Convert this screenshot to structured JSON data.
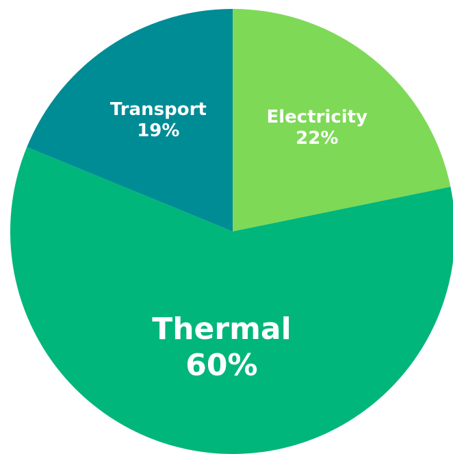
{
  "chart_data": {
    "type": "pie",
    "categories": [
      "Electricity",
      "Thermal",
      "Transport"
    ],
    "values": [
      22,
      60,
      19
    ],
    "value_labels": [
      "22%",
      "60%",
      "19%"
    ],
    "colors": [
      "#7ed957",
      "#00b67a",
      "#008c95"
    ]
  }
}
